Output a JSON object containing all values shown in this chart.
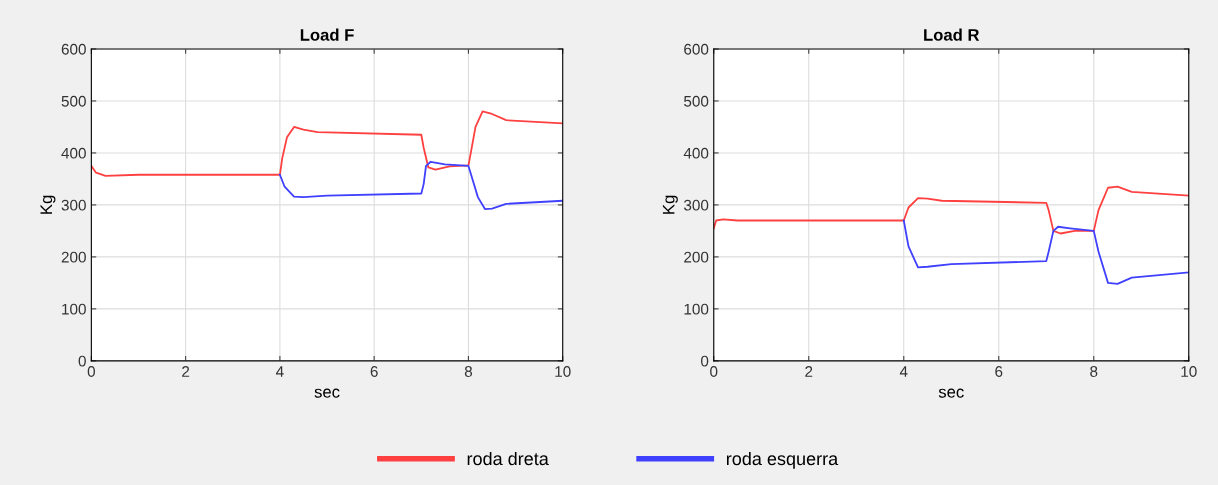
{
  "chart_data": [
    {
      "type": "line",
      "title": "Load F",
      "xlabel": "sec",
      "ylabel": "Kg",
      "xlim": [
        0,
        10
      ],
      "xticks": [
        0,
        2,
        4,
        6,
        8,
        10
      ],
      "ylim": [
        0,
        600
      ],
      "yticks": [
        0,
        100,
        200,
        300,
        400,
        500,
        600
      ],
      "grid": true,
      "legend": "bottom",
      "series": [
        {
          "name": "roda dreta",
          "color": "#ff4040",
          "x": [
            0,
            0.1,
            0.3,
            1,
            4,
            4.05,
            4.15,
            4.3,
            4.5,
            4.8,
            7,
            7.05,
            7.15,
            7.3,
            7.6,
            8,
            8.05,
            8.15,
            8.3,
            8.5,
            8.8,
            10
          ],
          "values": [
            375,
            362,
            356,
            358,
            358,
            390,
            430,
            450,
            445,
            440,
            435,
            410,
            372,
            368,
            374,
            376,
            400,
            450,
            480,
            475,
            463,
            457
          ]
        },
        {
          "name": "roda esquerra",
          "color": "#4040ff",
          "x": [
            4,
            4.1,
            4.3,
            4.5,
            5,
            7,
            7.05,
            7.1,
            7.2,
            7.5,
            8,
            8.1,
            8.2,
            8.35,
            8.5,
            8.8,
            10
          ],
          "values": [
            358,
            335,
            316,
            315,
            318,
            322,
            340,
            375,
            383,
            378,
            375,
            345,
            315,
            292,
            293,
            302,
            308
          ]
        }
      ]
    },
    {
      "type": "line",
      "title": "Load R",
      "xlabel": "sec",
      "ylabel": "Kg",
      "xlim": [
        0,
        10
      ],
      "xticks": [
        0,
        2,
        4,
        6,
        8,
        10
      ],
      "ylim": [
        0,
        600
      ],
      "yticks": [
        0,
        100,
        200,
        300,
        400,
        500,
        600
      ],
      "grid": true,
      "series": [
        {
          "name": "roda dreta",
          "color": "#ff4040",
          "x": [
            0,
            0.05,
            0.2,
            0.5,
            4,
            4.1,
            4.3,
            4.5,
            4.8,
            7,
            7.05,
            7.15,
            7.3,
            7.6,
            8,
            8.1,
            8.3,
            8.5,
            8.8,
            10
          ],
          "values": [
            255,
            270,
            272,
            270,
            270,
            295,
            313,
            312,
            308,
            304,
            290,
            250,
            245,
            250,
            250,
            290,
            333,
            335,
            325,
            318
          ]
        },
        {
          "name": "roda esquerra",
          "color": "#4040ff",
          "x": [
            4,
            4.1,
            4.3,
            4.5,
            5,
            7,
            7.05,
            7.15,
            7.25,
            7.5,
            8,
            8.1,
            8.3,
            8.5,
            8.8,
            10
          ],
          "values": [
            270,
            220,
            180,
            181,
            186,
            192,
            210,
            250,
            258,
            255,
            250,
            210,
            150,
            148,
            160,
            170
          ]
        }
      ]
    }
  ]
}
